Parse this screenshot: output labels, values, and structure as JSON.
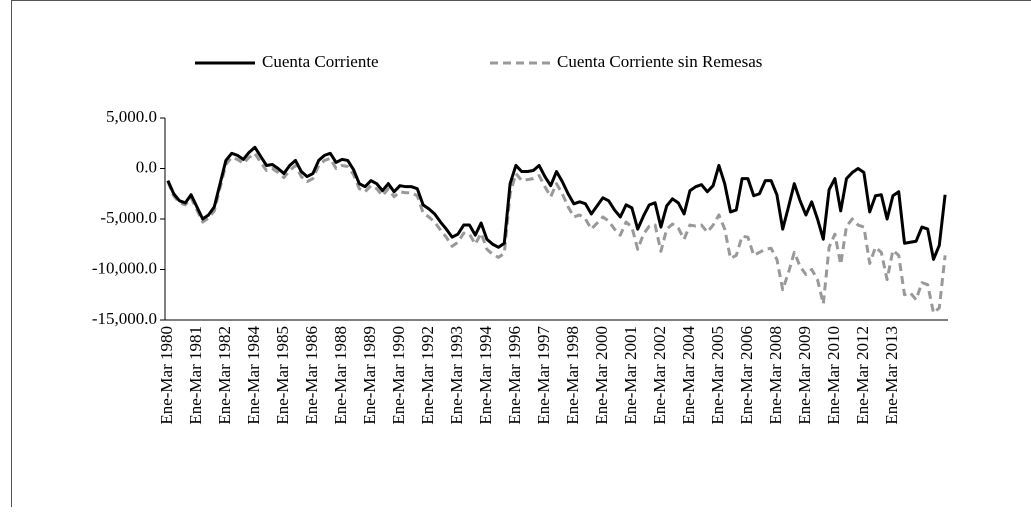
{
  "chart_data": {
    "type": "line",
    "categories": [
      "Ene-Mar 1980",
      null,
      null,
      null,
      null,
      "Ene-Mar 1981",
      null,
      null,
      null,
      null,
      "Ene-Mar 1982",
      null,
      null,
      null,
      null,
      "Ene-Mar 1984",
      null,
      null,
      null,
      null,
      "Ene-Mar 1985",
      null,
      null,
      null,
      null,
      "Ene-Mar 1986",
      null,
      null,
      null,
      null,
      "Ene-Mar 1988",
      null,
      null,
      null,
      null,
      "Ene-Mar 1989",
      null,
      null,
      null,
      null,
      "Ene-Mar 1990",
      null,
      null,
      null,
      null,
      "Ene-Mar 1992",
      null,
      null,
      null,
      null,
      "Ene-Mar 1993",
      null,
      null,
      null,
      null,
      "Ene-Mar 1994",
      null,
      null,
      null,
      null,
      "Ene-Mar 1996",
      null,
      null,
      null,
      null,
      "Ene-Mar 1997",
      null,
      null,
      null,
      null,
      "Ene-Mar 1998",
      null,
      null,
      null,
      null,
      "Ene-Mar 2000",
      null,
      null,
      null,
      null,
      "Ene-Mar 2001",
      null,
      null,
      null,
      null,
      "Ene-Mar 2002",
      null,
      null,
      null,
      null,
      "Ene-Mar 2004",
      null,
      null,
      null,
      null,
      "Ene-Mar 2005",
      null,
      null,
      null,
      null,
      "Ene-Mar 2006",
      null,
      null,
      null,
      null,
      "Ene-Mar 2008",
      null,
      null,
      null,
      null,
      "Ene-Mar 2009",
      null,
      null,
      null,
      null,
      "Ene-Mar 2010",
      null,
      null,
      null,
      null,
      "Ene-Mar 2012",
      null,
      null,
      null,
      null,
      "Ene-Mar 2013",
      null,
      null,
      null,
      null,
      null,
      null,
      null,
      null,
      null
    ],
    "series": [
      {
        "name": "Cuenta Corriente",
        "color": "#000000",
        "dashed": false,
        "values": [
          -1200,
          -2500,
          -3200,
          -3400,
          -2600,
          -3800,
          -5000,
          -4600,
          -3800,
          -1500,
          800,
          1500,
          1300,
          900,
          1600,
          2100,
          1200,
          300,
          400,
          0,
          -500,
          300,
          800,
          -300,
          -800,
          -500,
          800,
          1300,
          1500,
          600,
          900,
          800,
          -100,
          -1500,
          -1800,
          -1200,
          -1500,
          -2200,
          -1500,
          -2300,
          -1700,
          -1800,
          -1800,
          -2000,
          -3600,
          -4000,
          -4500,
          -5300,
          -6000,
          -6800,
          -6500,
          -5600,
          -5600,
          -6600,
          -5400,
          -7000,
          -7500,
          -7800,
          -7400,
          -1500,
          300,
          -300,
          -300,
          -200,
          300,
          -800,
          -1700,
          -300,
          -1300,
          -2500,
          -3500,
          -3300,
          -3500,
          -4500,
          -3700,
          -2900,
          -3200,
          -4100,
          -4800,
          -3600,
          -3900,
          -6000,
          -4700,
          -3600,
          -3400,
          -5800,
          -3700,
          -3000,
          -3400,
          -4500,
          -2200,
          -1800,
          -1600,
          -2300,
          -1700,
          300,
          -1500,
          -4300,
          -4100,
          -1000,
          -1000,
          -2700,
          -2500,
          -1200,
          -1200,
          -2600,
          -6000,
          -3800,
          -1500,
          -3200,
          -4600,
          -3300,
          -5000,
          -7000,
          -2100,
          -1000,
          -4200,
          -1000,
          -400,
          0,
          -400,
          -4300,
          -2700,
          -2600,
          -5000,
          -2700,
          -2300,
          -7400,
          -7300,
          -7200,
          -5800,
          -6000,
          -9000,
          -7600,
          -2600
        ]
      },
      {
        "name": "Cuenta Corriente sin Remesas",
        "color": "#999999",
        "dashed": true,
        "values": [
          -1300,
          -2700,
          -3400,
          -3600,
          -2900,
          -4100,
          -5300,
          -4900,
          -4200,
          -1900,
          400,
          1100,
          900,
          500,
          1100,
          1500,
          600,
          -200,
          0,
          -400,
          -900,
          -200,
          300,
          -800,
          -1300,
          -1000,
          300,
          800,
          1000,
          0,
          300,
          200,
          -600,
          -2000,
          -2300,
          -1700,
          -2000,
          -2700,
          -2000,
          -2800,
          -2300,
          -2400,
          -2400,
          -2700,
          -4400,
          -4800,
          -5300,
          -6100,
          -6800,
          -7700,
          -7300,
          -6400,
          -6500,
          -7500,
          -6400,
          -8000,
          -8500,
          -8800,
          -8400,
          -2500,
          -500,
          -1200,
          -1100,
          -1000,
          -700,
          -1800,
          -2800,
          -1500,
          -2500,
          -3800,
          -4800,
          -4600,
          -5000,
          -6000,
          -5400,
          -4800,
          -5200,
          -6000,
          -6600,
          -5300,
          -5800,
          -8000,
          -6500,
          -5700,
          -5600,
          -8200,
          -6000,
          -5500,
          -5900,
          -7000,
          -5600,
          -5700,
          -5600,
          -6300,
          -5600,
          -4600,
          -6000,
          -8900,
          -8600,
          -6700,
          -6800,
          -8600,
          -8300,
          -8000,
          -7900,
          -9000,
          -12000,
          -10300,
          -8300,
          -9700,
          -10500,
          -10000,
          -11000,
          -13400,
          -7800,
          -6500,
          -9500,
          -5700,
          -5000,
          -5600,
          -5800,
          -9400,
          -7800,
          -8300,
          -11000,
          -8100,
          -8600,
          -12500,
          -12300,
          -13000,
          -11300,
          -11500,
          -14300,
          -13800,
          -8600
        ]
      }
    ],
    "ylim": [
      -15000,
      5000
    ],
    "yticks": [
      {
        "value": -15000,
        "label": "-15,000.0"
      },
      {
        "value": -10000,
        "label": "-10,000.0"
      },
      {
        "value": -5000,
        "label": "-5,000.0"
      },
      {
        "value": 0,
        "label": "0.0"
      },
      {
        "value": 5000,
        "label": "5,000.0"
      }
    ],
    "grid": false
  }
}
